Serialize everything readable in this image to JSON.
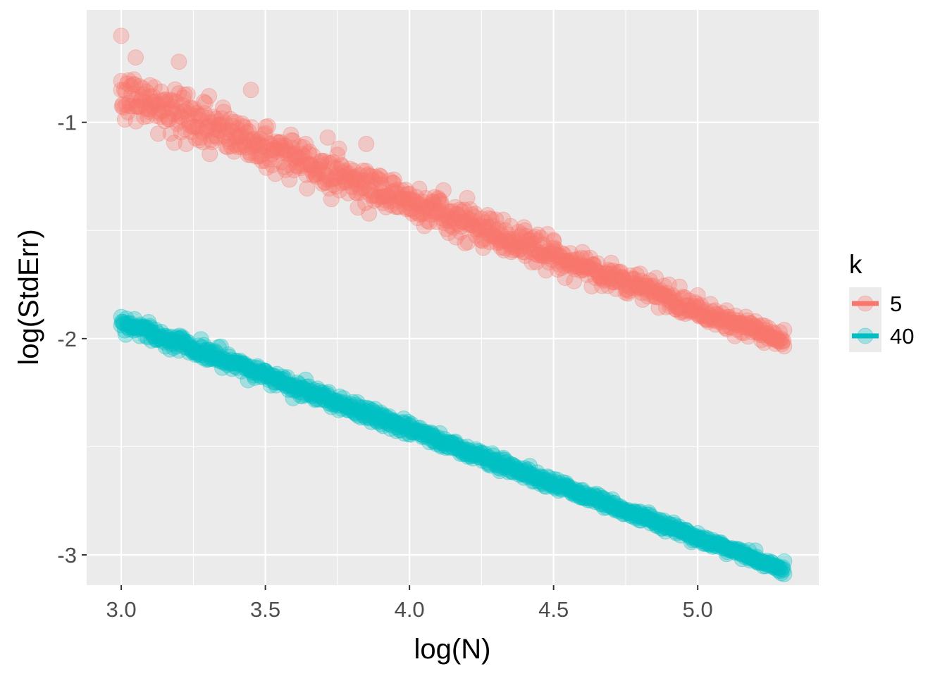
{
  "chart_data": {
    "type": "scatter",
    "title": "",
    "xlabel": "log(N)",
    "ylabel": "log(StdErr)",
    "xlim": [
      2.88,
      5.42
    ],
    "ylim": [
      -3.14,
      -0.48
    ],
    "x_ticks": [
      3.0,
      3.5,
      4.0,
      4.5,
      5.0
    ],
    "x_tick_labels": [
      "3.0",
      "3.5",
      "4.0",
      "4.5",
      "5.0"
    ],
    "y_ticks": [
      -3,
      -2,
      -1
    ],
    "y_tick_labels": [
      "-3",
      "-2",
      "-1"
    ],
    "grid": true,
    "background": "#ebebeb",
    "legend": {
      "title": "k",
      "placement": "right",
      "entries": [
        {
          "label": "5",
          "color": "#f8766d"
        },
        {
          "label": "40",
          "color": "#00bfc4"
        }
      ]
    },
    "series": [
      {
        "name": "5",
        "color": "#f8766d",
        "x_range": [
          3.0,
          5.3
        ],
        "trend": {
          "intercept": 0.635,
          "slope": -0.5
        },
        "noise_sd_at_min": 0.06,
        "noise_sd_at_max": 0.02,
        "points": [
          {
            "x": 3.0,
            "y": -0.6
          },
          {
            "x": 3.0,
            "y": -0.85
          },
          {
            "x": 3.05,
            "y": -0.7
          },
          {
            "x": 3.1,
            "y": -0.88
          },
          {
            "x": 3.2,
            "y": -0.72
          },
          {
            "x": 3.3,
            "y": -0.98
          },
          {
            "x": 3.4,
            "y": -1.0
          },
          {
            "x": 3.45,
            "y": -0.85
          },
          {
            "x": 3.5,
            "y": -1.05
          },
          {
            "x": 3.6,
            "y": -1.15
          },
          {
            "x": 3.75,
            "y": -1.15
          },
          {
            "x": 3.85,
            "y": -1.1
          },
          {
            "x": 3.9,
            "y": -1.25
          },
          {
            "x": 4.0,
            "y": -1.33
          },
          {
            "x": 4.1,
            "y": -1.35
          },
          {
            "x": 4.2,
            "y": -1.35
          },
          {
            "x": 4.3,
            "y": -1.45
          },
          {
            "x": 4.4,
            "y": -1.5
          },
          {
            "x": 4.5,
            "y": -1.55
          },
          {
            "x": 4.6,
            "y": -1.6
          },
          {
            "x": 4.7,
            "y": -1.65
          },
          {
            "x": 4.8,
            "y": -1.7
          },
          {
            "x": 4.9,
            "y": -1.75
          },
          {
            "x": 5.0,
            "y": -1.8
          },
          {
            "x": 5.1,
            "y": -1.87
          },
          {
            "x": 5.2,
            "y": -1.92
          },
          {
            "x": 5.3,
            "y": -1.96
          }
        ]
      },
      {
        "name": "40",
        "color": "#00bfc4",
        "x_range": [
          3.0,
          5.3
        ],
        "trend": {
          "intercept": -0.42,
          "slope": -0.5
        },
        "noise_sd_at_min": 0.02,
        "noise_sd_at_max": 0.01,
        "points": [
          {
            "x": 3.0,
            "y": -1.9
          },
          {
            "x": 3.1,
            "y": -1.95
          },
          {
            "x": 3.2,
            "y": -2.0
          },
          {
            "x": 3.3,
            "y": -2.05
          },
          {
            "x": 3.5,
            "y": -2.15
          },
          {
            "x": 3.7,
            "y": -2.25
          },
          {
            "x": 3.9,
            "y": -2.35
          },
          {
            "x": 4.0,
            "y": -2.4
          },
          {
            "x": 4.2,
            "y": -2.5
          },
          {
            "x": 4.4,
            "y": -2.6
          },
          {
            "x": 4.6,
            "y": -2.7
          },
          {
            "x": 4.8,
            "y": -2.8
          },
          {
            "x": 5.0,
            "y": -2.9
          },
          {
            "x": 5.2,
            "y": -2.98
          },
          {
            "x": 5.3,
            "y": -3.03
          }
        ]
      }
    ]
  }
}
